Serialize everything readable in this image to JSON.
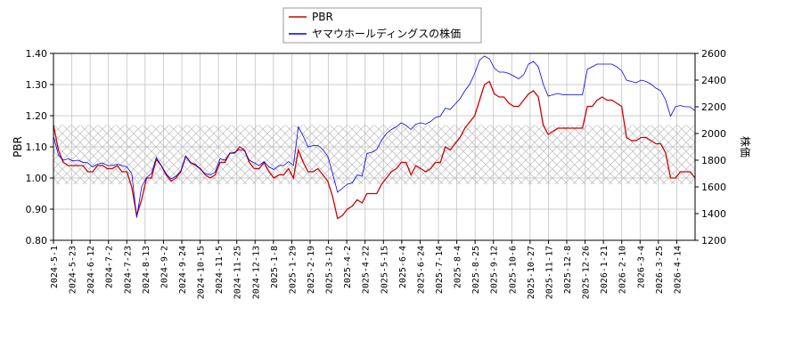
{
  "chart_data": {
    "type": "line",
    "x_ticks": [
      "2024-5-1",
      "2024-5-23",
      "2024-6-12",
      "2024-7-2",
      "2024-7-23",
      "2024-8-13",
      "2024-9-2",
      "2024-9-24",
      "2024-10-15",
      "2024-11-5",
      "2024-11-25",
      "2024-12-13",
      "2025-1-8",
      "2025-1-29",
      "2025-2-19",
      "2025-3-12",
      "2025-4-2",
      "2025-4-22",
      "2025-5-15",
      "2025-6-4",
      "2025-6-24",
      "2025-7-14",
      "2025-8-4",
      "2025-8-25",
      "2025-9-12",
      "2025-10-6",
      "2025-10-27",
      "2025-11-17",
      "2025-12-8",
      "2025-12-26",
      "2026-1-21",
      "2026-2-10",
      "2026-3-4",
      "2026-3-25",
      "2026-4-14"
    ],
    "left_axis": {
      "label": "PBR",
      "min": 0.8,
      "max": 1.4,
      "ticks": [
        "0.80",
        "0.90",
        "1.00",
        "1.10",
        "1.20",
        "1.30",
        "1.40"
      ]
    },
    "right_axis": {
      "label": "株価",
      "min": 1200,
      "max": 2600,
      "ticks": [
        "1200",
        "1400",
        "1600",
        "1800",
        "2000",
        "2200",
        "2400",
        "2600"
      ]
    },
    "band": {
      "low": 0.98,
      "high": 1.17
    },
    "grid": true,
    "legend_position": "top-center",
    "series": [
      {
        "name": "PBR",
        "axis": "left",
        "color": "#cc0000",
        "values": [
          1.17,
          1.09,
          1.05,
          1.04,
          1.04,
          1.04,
          1.04,
          1.02,
          1.02,
          1.04,
          1.04,
          1.03,
          1.03,
          1.04,
          1.02,
          1.02,
          0.97,
          0.88,
          0.93,
          1.0,
          1.0,
          1.06,
          1.04,
          1.01,
          0.99,
          1.0,
          1.02,
          1.07,
          1.05,
          1.04,
          1.03,
          1.01,
          1.0,
          1.01,
          1.05,
          1.05,
          1.08,
          1.08,
          1.1,
          1.09,
          1.05,
          1.03,
          1.03,
          1.05,
          1.02,
          1.0,
          1.01,
          1.01,
          1.03,
          1.0,
          1.09,
          1.05,
          1.02,
          1.02,
          1.03,
          1.01,
          0.99,
          0.94,
          0.87,
          0.88,
          0.9,
          0.91,
          0.93,
          0.92,
          0.95,
          0.95,
          0.95,
          0.98,
          1.0,
          1.02,
          1.03,
          1.05,
          1.05,
          1.01,
          1.04,
          1.03,
          1.02,
          1.03,
          1.05,
          1.05,
          1.1,
          1.09,
          1.11,
          1.13,
          1.16,
          1.18,
          1.2,
          1.25,
          1.3,
          1.31,
          1.27,
          1.26,
          1.26,
          1.24,
          1.23,
          1.23,
          1.25,
          1.27,
          1.28,
          1.26,
          1.17,
          1.14,
          1.15,
          1.16,
          1.16,
          1.16,
          1.16,
          1.16,
          1.16,
          1.23,
          1.23,
          1.25,
          1.26,
          1.25,
          1.25,
          1.24,
          1.23,
          1.13,
          1.12,
          1.12,
          1.13,
          1.13,
          1.12,
          1.11,
          1.11,
          1.08,
          1.0,
          1.0,
          1.02,
          1.02,
          1.02,
          1.0
        ]
      },
      {
        "name": "ヤマウホールディングスの株価",
        "axis": "right",
        "color": "#0000ee",
        "values": [
          1980,
          1840,
          1800,
          1810,
          1795,
          1800,
          1785,
          1780,
          1750,
          1770,
          1780,
          1760,
          1760,
          1770,
          1760,
          1750,
          1700,
          1370,
          1600,
          1670,
          1700,
          1820,
          1760,
          1700,
          1660,
          1680,
          1720,
          1830,
          1780,
          1770,
          1730,
          1700,
          1690,
          1710,
          1810,
          1800,
          1850,
          1860,
          1880,
          1870,
          1800,
          1780,
          1760,
          1790,
          1750,
          1730,
          1760,
          1760,
          1790,
          1760,
          2050,
          1980,
          1900,
          1910,
          1910,
          1880,
          1830,
          1700,
          1560,
          1590,
          1620,
          1630,
          1690,
          1680,
          1850,
          1860,
          1880,
          1950,
          2000,
          2030,
          2050,
          2080,
          2060,
          2030,
          2070,
          2080,
          2070,
          2090,
          2120,
          2130,
          2190,
          2180,
          2220,
          2260,
          2320,
          2370,
          2450,
          2550,
          2580,
          2560,
          2490,
          2460,
          2460,
          2450,
          2430,
          2410,
          2440,
          2520,
          2540,
          2500,
          2370,
          2280,
          2290,
          2300,
          2290,
          2290,
          2290,
          2290,
          2290,
          2480,
          2500,
          2520,
          2520,
          2520,
          2520,
          2500,
          2470,
          2400,
          2390,
          2380,
          2400,
          2390,
          2370,
          2340,
          2320,
          2250,
          2130,
          2200,
          2210,
          2200,
          2200,
          2170
        ]
      }
    ]
  }
}
